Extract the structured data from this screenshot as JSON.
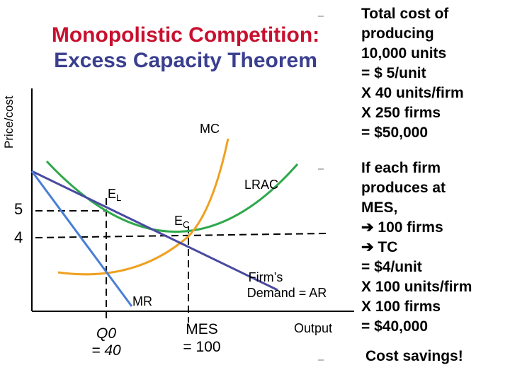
{
  "title": {
    "line1": "Monopolistic Competition:",
    "line2": "Excess Capacity Theorem"
  },
  "axes": {
    "y_label": "Price/cost",
    "x_label": "Output",
    "price_ticks": [
      "5",
      "4"
    ]
  },
  "curves": {
    "mc": "MC",
    "lrac": "LRAC",
    "mr": "MR",
    "demand_line1": "Firm’s",
    "demand_line2": "Demand = AR"
  },
  "points": {
    "el_main": "E",
    "el_sub": "L",
    "ec_main": "E",
    "ec_sub": "C"
  },
  "quantities": {
    "q0_line1": "Q0",
    "q0_line2": "= 40",
    "mes_line1": "MES",
    "mes_line2": "= 100"
  },
  "side_text": {
    "block1": [
      "Total cost of",
      "producing",
      "10,000 units",
      "= $ 5/unit",
      "X 40 units/firm",
      "X 250 firms",
      "= $50,000"
    ],
    "block2": [
      "If each firm",
      "produces at",
      "MES,",
      "➔ 100 firms",
      "➔ TC",
      "= $4/unit",
      "X 100 units/firm",
      "X 100 firms",
      "= $40,000"
    ],
    "savings": "Cost savings!"
  },
  "colors": {
    "title_red": "#c8102e",
    "title_blue": "#3a3f8f",
    "mc": "#f0a020",
    "lrac": "#2ea84a",
    "demand": "#4a4aa0",
    "mr": "#4a7fd6"
  }
}
